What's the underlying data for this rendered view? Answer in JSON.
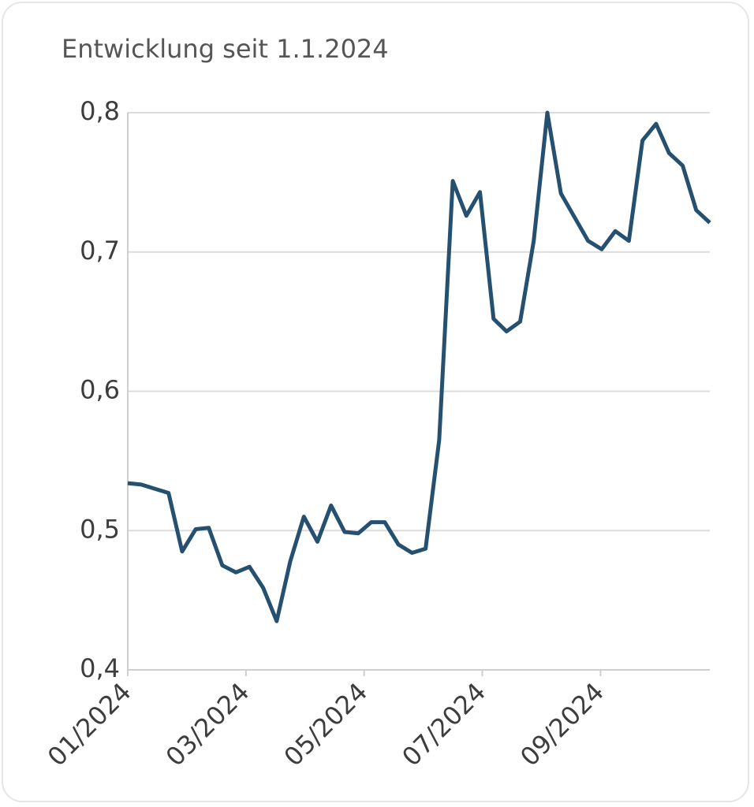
{
  "chart_data": {
    "type": "line",
    "title": "Entwicklung seit 1.1.2024",
    "x": [
      0,
      0.23,
      0.46,
      0.69,
      0.92,
      1.15,
      1.37,
      1.6,
      1.83,
      2.06,
      2.29,
      2.52,
      2.75,
      2.98,
      3.21,
      3.44,
      3.67,
      3.9,
      4.12,
      4.35,
      4.58,
      4.81,
      5.04,
      5.27,
      5.5,
      5.73,
      5.96,
      6.19,
      6.41,
      6.64,
      6.87,
      7.1,
      7.33,
      7.56,
      7.79,
      8.02,
      8.25,
      8.48,
      8.71,
      8.94,
      9.16,
      9.39,
      9.62,
      9.85
    ],
    "series": [
      {
        "color": "#25506f",
        "values": [
          0.534,
          0.533,
          0.53,
          0.527,
          0.485,
          0.501,
          0.502,
          0.475,
          0.47,
          0.474,
          0.459,
          0.435,
          0.478,
          0.51,
          0.492,
          0.518,
          0.499,
          0.498,
          0.506,
          0.506,
          0.49,
          0.484,
          0.487,
          0.565,
          0.751,
          0.726,
          0.743,
          0.652,
          0.643,
          0.65,
          0.708,
          0.8,
          0.742,
          0.725,
          0.708,
          0.702,
          0.715,
          0.708,
          0.78,
          0.792,
          0.771,
          0.762,
          0.73,
          0.721
        ]
      }
    ],
    "xlim": [
      0,
      9.85
    ],
    "xticks": [
      {
        "value": 0,
        "label": "01/2024"
      },
      {
        "value": 2,
        "label": "03/2024"
      },
      {
        "value": 4,
        "label": "05/2024"
      },
      {
        "value": 6,
        "label": "07/2024"
      },
      {
        "value": 8,
        "label": "09/2024"
      }
    ],
    "ylim": [
      0.4,
      0.8
    ],
    "yticks": [
      {
        "value": 0.4,
        "label": "0,4"
      },
      {
        "value": 0.5,
        "label": "0,5"
      },
      {
        "value": 0.6,
        "label": "0,6"
      },
      {
        "value": 0.7,
        "label": "0,7"
      },
      {
        "value": 0.8,
        "label": "0,8"
      }
    ],
    "grid": true
  }
}
